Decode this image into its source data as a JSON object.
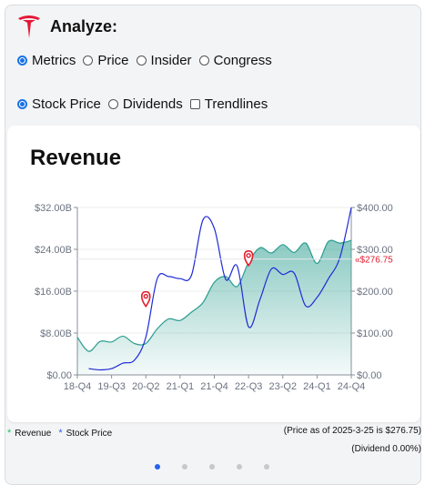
{
  "app": {
    "title": "Analyze:"
  },
  "view_options": [
    {
      "label": "Metrics",
      "checked": true
    },
    {
      "label": "Price",
      "checked": false
    },
    {
      "label": "Insider",
      "checked": false
    },
    {
      "label": "Congress",
      "checked": false
    }
  ],
  "chart_options": [
    {
      "label": "Stock Price",
      "checked": true,
      "kind": "radio"
    },
    {
      "label": "Dividends",
      "checked": false,
      "kind": "radio"
    },
    {
      "label": "Trendlines",
      "checked": false,
      "kind": "checkbox"
    }
  ],
  "legend": [
    {
      "label": "Revenue",
      "color": "#22c55e"
    },
    {
      "label": "Stock Price",
      "color": "#2563eb"
    }
  ],
  "notes": {
    "price": "(Price as of 2025-3-25 is $276.75)",
    "dividend": "(Dividend 0.00%)"
  },
  "pagination": {
    "count": 5,
    "active": 0
  },
  "chart_data": {
    "type": "line",
    "title": "Revenue",
    "categories": [
      "18-Q4",
      "19-Q1",
      "19-Q2",
      "19-Q3",
      "19-Q4",
      "20-Q1",
      "20-Q2",
      "20-Q3",
      "20-Q4",
      "21-Q1",
      "21-Q2",
      "21-Q3",
      "21-Q4",
      "22-Q1",
      "22-Q2",
      "22-Q3",
      "22-Q4",
      "23-Q1",
      "23-Q2",
      "23-Q3",
      "23-Q4",
      "24-Q1",
      "24-Q2",
      "24-Q3",
      "24-Q4"
    ],
    "x_tick_labels": [
      "18-Q4",
      "19-Q3",
      "20-Q2",
      "21-Q1",
      "21-Q4",
      "22-Q3",
      "23-Q2",
      "24-Q1",
      "24-Q4"
    ],
    "y_left": {
      "ticks": [
        "$0.00",
        "$8.00B",
        "$16.00B",
        "$24.00B",
        "$32.00B"
      ],
      "range": [
        0,
        32
      ]
    },
    "y_right": {
      "ticks": [
        "$0.00",
        "$100.00",
        "$200.00",
        "$300.00",
        "$400.00"
      ],
      "range": [
        0,
        400
      ]
    },
    "series": [
      {
        "name": "Revenue",
        "axis": "left",
        "color": "#2a9d8f",
        "fill": "#2a9d8f",
        "values": [
          7.2,
          4.5,
          6.4,
          6.3,
          7.4,
          6.0,
          6.0,
          8.8,
          10.7,
          10.4,
          12.0,
          13.8,
          17.7,
          18.8,
          16.9,
          21.5,
          24.3,
          23.3,
          24.9,
          23.4,
          25.2,
          21.3,
          25.5,
          25.2,
          25.7
        ]
      },
      {
        "name": "Stock Price",
        "axis": "right",
        "color": "#1f2bd6",
        "values": [
          null,
          15,
          12,
          15,
          28,
          35,
          90,
          230,
          235,
          230,
          238,
          370,
          350,
          228,
          260,
          115,
          180,
          253,
          240,
          243,
          165,
          185,
          230,
          280,
          400
        ]
      }
    ],
    "markers": [
      {
        "label": "",
        "category": "20-Q2",
        "value": 14.5
      },
      {
        "label": "",
        "category": "22-Q3",
        "value": 22.3
      }
    ],
    "price_line": {
      "label": "«$276.75",
      "value": 276.75,
      "color": "#e11d2e"
    }
  }
}
